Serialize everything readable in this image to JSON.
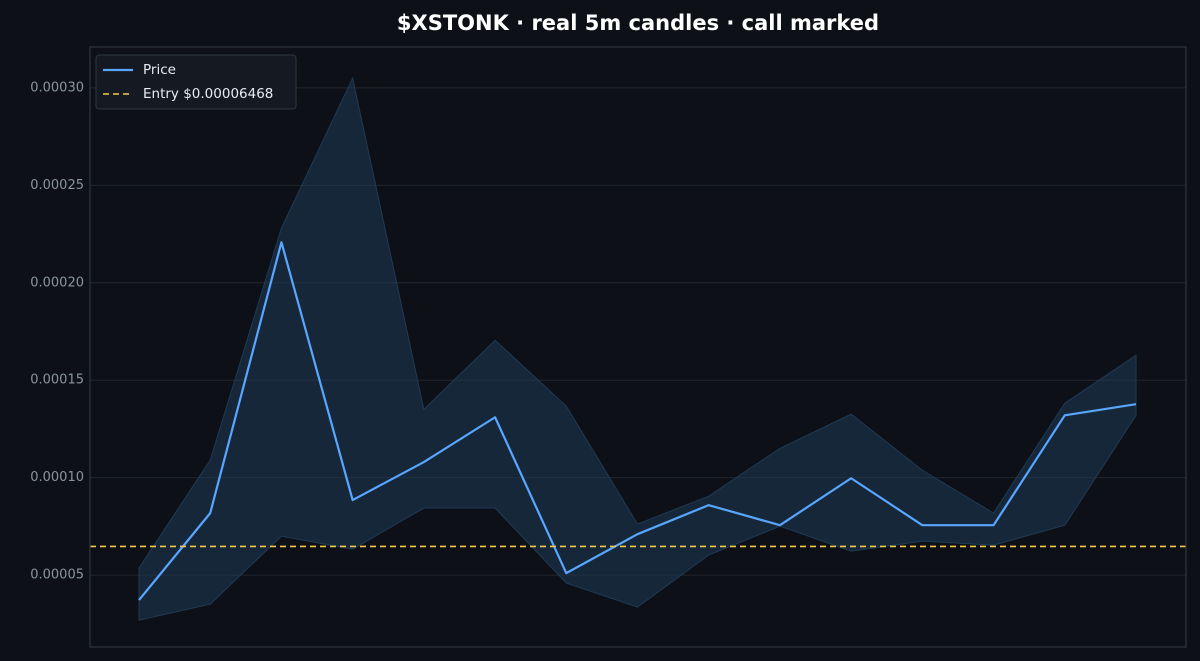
{
  "chart_data": {
    "type": "line",
    "title": "$XSTONK  ·  real 5m candles · call marked",
    "categories": [
      null,
      null,
      null,
      null,
      null,
      null,
      null,
      null,
      null,
      null,
      null,
      null,
      null,
      null,
      null
    ],
    "series": [
      {
        "name": "Price",
        "color": "#58a6ff",
        "values": [
          3.72e-05,
          8.18e-05,
          0.0002208,
          8.85e-05,
          0.000108,
          0.000131,
          5.1e-05,
          7.1e-05,
          8.59e-05,
          7.56e-05,
          9.97e-05,
          7.56e-05,
          7.56e-05,
          0.000132,
          0.0001377
        ],
        "high": [
          5.36e-05,
          0.000109,
          0.000228,
          0.000305,
          0.000135,
          0.0001705,
          0.0001367,
          7.62e-05,
          9.05e-05,
          0.000115,
          0.0001326,
          0.0001038,
          8.18e-05,
          0.0001382,
          0.0001628
        ],
        "low": [
          2.69e-05,
          3.51e-05,
          7e-05,
          6.33e-05,
          8.44e-05,
          8.44e-05,
          4.59e-05,
          3.36e-05,
          6.03e-05,
          7.51e-05,
          6.23e-05,
          6.74e-05,
          6.54e-05,
          7.56e-05,
          0.000132
        ],
        "band_color": "#1f3a56"
      }
    ],
    "reference_line": {
      "name": "Entry $0.00006468",
      "value": 6.468e-05,
      "color": "#f2c94c"
    },
    "ylim": [
      1.31e-05,
      0.000321
    ],
    "yticks": [
      5e-05,
      {
        "value": 0.0001,
        "label": "0.00010"
      },
      0.00015,
      {
        "value": 0.0002,
        "label": "0.00020"
      },
      0.00025,
      {
        "value": 0.0003,
        "label": "0.00030"
      }
    ],
    "grid": true,
    "legend": "upper left"
  }
}
